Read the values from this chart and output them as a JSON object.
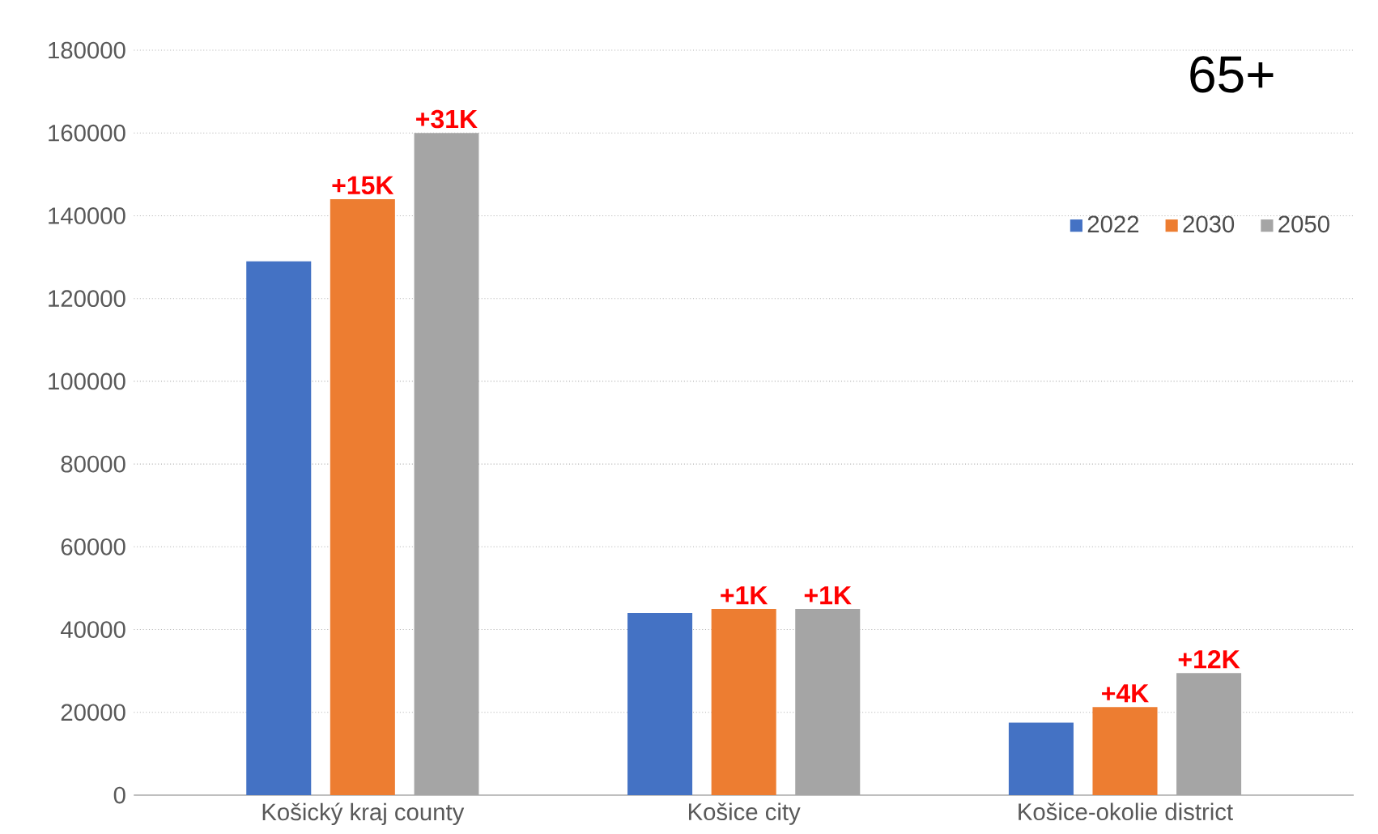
{
  "chart_data": {
    "type": "bar",
    "title": "65+",
    "categories": [
      "Košický kraj county",
      "Košice city",
      "Košice-okolie district"
    ],
    "series": [
      {
        "name": "2022",
        "color": "#4472c4",
        "values": [
          129000,
          44000,
          17500
        ]
      },
      {
        "name": "2030",
        "color": "#ed7d31",
        "values": [
          144000,
          45000,
          21300
        ]
      },
      {
        "name": "2050",
        "color": "#a5a5a5",
        "values": [
          160000,
          45000,
          29500
        ]
      }
    ],
    "annotations": [
      "+15K",
      "+31K",
      "+1K",
      "+1K",
      "+4K",
      "+12K"
    ],
    "ylim": [
      0,
      180000
    ],
    "yticks": [
      0,
      20000,
      40000,
      60000,
      80000,
      100000,
      120000,
      140000,
      160000,
      180000
    ],
    "grid": "y",
    "legend": "top right"
  }
}
